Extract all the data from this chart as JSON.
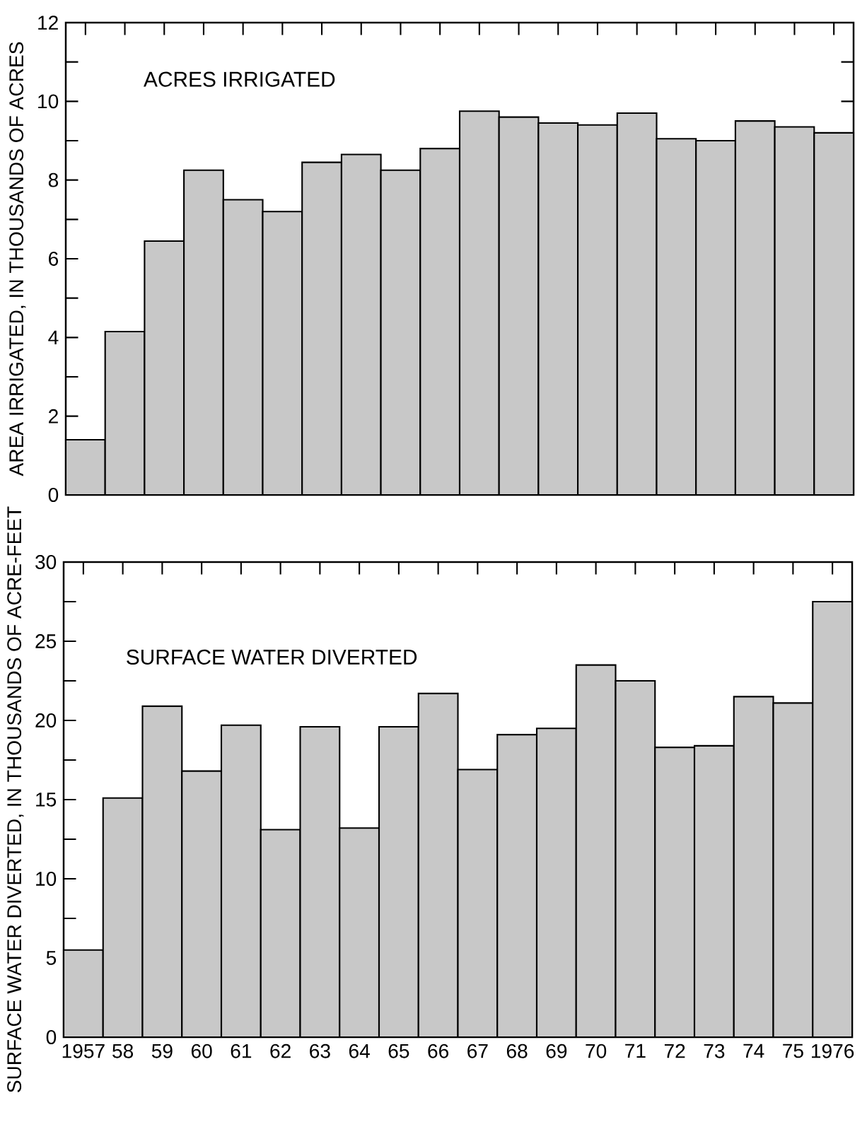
{
  "chart_data": [
    {
      "type": "bar",
      "ylabel": "AREA IRRIGATED, IN THOUSANDS OF ACRES",
      "annotations": [
        "ACRES IRRIGATED"
      ],
      "categories": [
        "1957",
        "58",
        "59",
        "60",
        "61",
        "62",
        "63",
        "64",
        "65",
        "66",
        "67",
        "68",
        "69",
        "70",
        "71",
        "72",
        "73",
        "74",
        "75",
        "1976"
      ],
      "values": [
        1.4,
        4.15,
        6.45,
        8.25,
        7.5,
        7.2,
        8.45,
        8.65,
        8.25,
        8.8,
        9.75,
        9.6,
        9.45,
        9.4,
        9.7,
        9.05,
        9.0,
        9.5,
        9.35,
        9.2
      ],
      "color": "#c8c8c8",
      "ylim": [
        0,
        12
      ],
      "yticks": [
        0,
        2,
        4,
        6,
        8,
        10,
        12
      ],
      "tick_labels": "y"
    },
    {
      "type": "bar",
      "ylabel": "SURFACE WATER DIVERTED, IN THOUSANDS OF ACRE-FEET",
      "annotations": [
        "SURFACE WATER DIVERTED"
      ],
      "categories": [
        "1957",
        "58",
        "59",
        "60",
        "61",
        "62",
        "63",
        "64",
        "65",
        "66",
        "67",
        "68",
        "69",
        "70",
        "71",
        "72",
        "73",
        "74",
        "75",
        "1976"
      ],
      "values": [
        5.5,
        15.1,
        20.9,
        16.8,
        19.7,
        13.1,
        19.6,
        13.2,
        19.6,
        21.7,
        16.9,
        19.1,
        19.5,
        23.5,
        22.5,
        18.3,
        18.4,
        21.5,
        21.1,
        27.5
      ],
      "color": "#c8c8c8",
      "ylim": [
        0,
        30
      ],
      "yticks": [
        0,
        5,
        10,
        15,
        20,
        25,
        30
      ]
    }
  ]
}
